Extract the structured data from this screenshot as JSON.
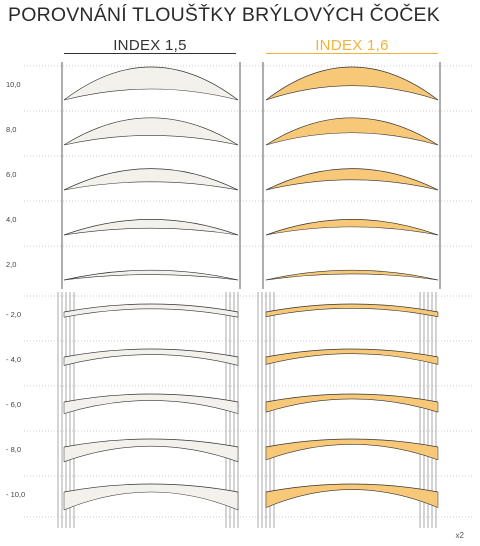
{
  "title": "POROVNÁNÍ TLOUŠŤKY BRÝLOVÝCH ČOČEK",
  "columns": {
    "left": {
      "label": "INDEX 1,5"
    },
    "right": {
      "label": "INDEX 1,6"
    }
  },
  "colors": {
    "accent": "#f0b43a",
    "lens_fill_left": "#f3f1ec",
    "lens_fill_right": "#f7c878",
    "rule": "#888888"
  },
  "rows": [
    {
      "label": "10,0",
      "power": 10
    },
    {
      "label": "8,0",
      "power": 8
    },
    {
      "label": "6,0",
      "power": 6
    },
    {
      "label": "4,0",
      "power": 4
    },
    {
      "label": "2,0",
      "power": 2
    },
    {
      "label": "- 2,0",
      "power": -2
    },
    {
      "label": "- 4,0",
      "power": -4
    },
    {
      "label": "- 6,0",
      "power": -6
    },
    {
      "label": "- 8,0",
      "power": -8
    },
    {
      "label": "- 10,0",
      "power": -10
    }
  ],
  "page_number": "x2"
}
